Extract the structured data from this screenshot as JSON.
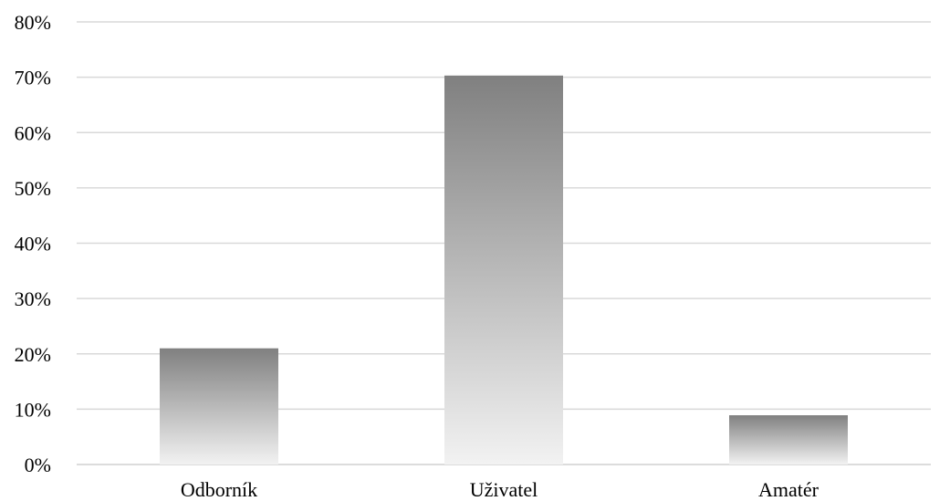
{
  "chart_data": {
    "type": "bar",
    "categories": [
      "Odborník",
      "Uživatel",
      "Amatér"
    ],
    "values": [
      21,
      70.3,
      8.9
    ],
    "ylim": [
      0,
      80
    ],
    "ytick_values": [
      0,
      10,
      20,
      30,
      40,
      50,
      60,
      70,
      80
    ],
    "ytick_labels": [
      "0%",
      "10%",
      "20%",
      "30%",
      "40%",
      "50%",
      "60%",
      "70%",
      "80%"
    ],
    "value_unit": "%",
    "grid": true,
    "legend": "none",
    "bar_fill": "vertical gradient, dark gray at top to near white at bottom",
    "colors": {
      "bar_top": "#808080",
      "bar_bottom": "#f2f2f2",
      "grid": "#d9d9d9"
    }
  }
}
